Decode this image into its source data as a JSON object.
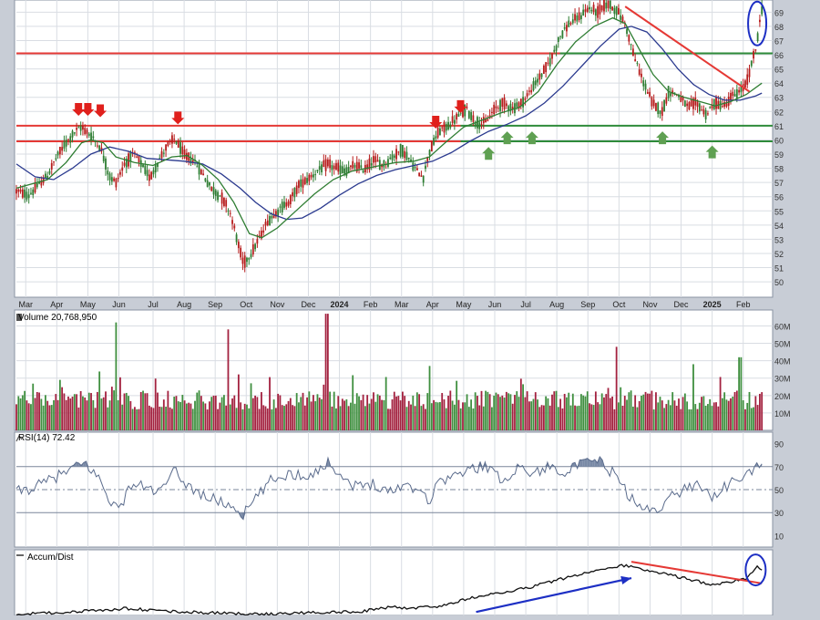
{
  "colors": {
    "background": "#c8cdd6",
    "panel": "#ffffff",
    "grid": "#d9dde3",
    "up_candle": "#2e7d32",
    "down_candle": "#b71c1c",
    "resistance": "#e53935",
    "support": "#2e8b3a",
    "sma_fast": "#2e7d32",
    "sma_slow": "#2b3a8f",
    "volume_up": "#3f8f3f",
    "volume_down": "#a3213f",
    "rsi_line": "#5a6b8c",
    "rsi_fill_over": "#7a8aa6",
    "accum_line": "#111111",
    "annotation_blue": "#1d2fc4",
    "annotation_red": "#e53935",
    "arrow_red": "#e0201c",
    "arrow_green": "#5fa052"
  },
  "chart_data": [
    {
      "type": "candlestick",
      "panel": "price",
      "y_ticks": [
        50,
        51,
        52,
        53,
        54,
        55,
        56,
        57,
        58,
        59,
        60,
        61,
        62,
        63,
        64,
        65,
        66,
        67,
        68,
        69
      ],
      "ylim": [
        49.3,
        69.6
      ],
      "x_ticks": [
        "Mar",
        "Apr",
        "May",
        "Jun",
        "Jul",
        "Aug",
        "Sep",
        "Oct",
        "Nov",
        "Dec",
        "2024",
        "Feb",
        "Mar",
        "Apr",
        "May",
        "Jun",
        "Jul",
        "Aug",
        "Sep",
        "Oct",
        "Nov",
        "Dec",
        "2025",
        "Feb"
      ],
      "bold_x_ticks": [
        "2024",
        "2025"
      ],
      "x_index_of_ticks": [
        0.3,
        1.3,
        2.3,
        3.3,
        4.4,
        5.4,
        6.4,
        7.4,
        8.4,
        9.4,
        10.4,
        11.4,
        12.4,
        13.4,
        14.4,
        15.4,
        16.4,
        17.4,
        18.4,
        19.4,
        20.4,
        21.4,
        22.4,
        23.4
      ],
      "x_span_months": 24.2,
      "close_path": [
        [
          0.0,
          56.4
        ],
        [
          0.4,
          56.1
        ],
        [
          0.7,
          56.8
        ],
        [
          1.0,
          57.5
        ],
        [
          1.3,
          58.8
        ],
        [
          1.6,
          59.8
        ],
        [
          1.9,
          60.6
        ],
        [
          2.1,
          60.9
        ],
        [
          2.4,
          60.3
        ],
        [
          2.7,
          59.5
        ],
        [
          3.0,
          57.4
        ],
        [
          3.2,
          57.0
        ],
        [
          3.5,
          58.4
        ],
        [
          3.8,
          59.0
        ],
        [
          4.1,
          58.0
        ],
        [
          4.3,
          57.3
        ],
        [
          4.5,
          58.2
        ],
        [
          4.8,
          59.4
        ],
        [
          5.1,
          60.1
        ],
        [
          5.4,
          58.9
        ],
        [
          5.7,
          58.6
        ],
        [
          6.0,
          57.6
        ],
        [
          6.3,
          56.5
        ],
        [
          6.6,
          56.0
        ],
        [
          6.9,
          54.8
        ],
        [
          7.1,
          53.0
        ],
        [
          7.3,
          51.3
        ],
        [
          7.5,
          51.8
        ],
        [
          7.8,
          53.0
        ],
        [
          8.1,
          54.3
        ],
        [
          8.4,
          55.0
        ],
        [
          8.8,
          55.7
        ],
        [
          9.1,
          56.8
        ],
        [
          9.4,
          57.3
        ],
        [
          9.7,
          57.8
        ],
        [
          10.0,
          58.3
        ],
        [
          10.3,
          58.0
        ],
        [
          10.6,
          57.8
        ],
        [
          10.9,
          58.2
        ],
        [
          11.2,
          57.9
        ],
        [
          11.5,
          58.6
        ],
        [
          11.8,
          58.2
        ],
        [
          12.1,
          58.8
        ],
        [
          12.4,
          59.3
        ],
        [
          12.6,
          58.8
        ],
        [
          12.9,
          57.8
        ],
        [
          13.1,
          57.4
        ],
        [
          13.3,
          59.2
        ],
        [
          13.6,
          60.6
        ],
        [
          13.9,
          61.0
        ],
        [
          14.2,
          61.6
        ],
        [
          14.5,
          62.2
        ],
        [
          14.8,
          61.2
        ],
        [
          15.1,
          61.2
        ],
        [
          15.4,
          62.2
        ],
        [
          15.7,
          62.6
        ],
        [
          16.0,
          62.2
        ],
        [
          16.3,
          62.7
        ],
        [
          16.6,
          63.6
        ],
        [
          16.9,
          64.6
        ],
        [
          17.2,
          65.6
        ],
        [
          17.5,
          67.3
        ],
        [
          17.8,
          68.2
        ],
        [
          18.1,
          68.6
        ],
        [
          18.4,
          69.3
        ],
        [
          18.7,
          69.0
        ],
        [
          19.0,
          69.6
        ],
        [
          19.3,
          69.2
        ],
        [
          19.6,
          68.2
        ],
        [
          19.9,
          65.8
        ],
        [
          20.2,
          64.0
        ],
        [
          20.5,
          62.5
        ],
        [
          20.8,
          62.0
        ],
        [
          21.0,
          63.4
        ],
        [
          21.3,
          63.2
        ],
        [
          21.6,
          62.3
        ],
        [
          21.9,
          62.6
        ],
        [
          22.2,
          61.8
        ],
        [
          22.5,
          62.6
        ],
        [
          22.8,
          62.4
        ],
        [
          23.0,
          63.0
        ],
        [
          23.3,
          63.4
        ],
        [
          23.5,
          64.0
        ],
        [
          23.8,
          66.4
        ],
        [
          24.0,
          69.2
        ]
      ],
      "sma_fast_path": [
        [
          0.0,
          56.6
        ],
        [
          1.0,
          57.2
        ],
        [
          1.6,
          58.4
        ],
        [
          2.1,
          59.8
        ],
        [
          2.4,
          60.0
        ],
        [
          2.8,
          59.8
        ],
        [
          3.2,
          58.8
        ],
        [
          3.8,
          58.4
        ],
        [
          4.4,
          58.2
        ],
        [
          5.0,
          58.8
        ],
        [
          5.5,
          58.9
        ],
        [
          6.0,
          58.2
        ],
        [
          6.5,
          57.2
        ],
        [
          7.0,
          55.6
        ],
        [
          7.5,
          53.4
        ],
        [
          7.9,
          53.1
        ],
        [
          8.4,
          53.8
        ],
        [
          9.0,
          55.0
        ],
        [
          9.6,
          56.2
        ],
        [
          10.2,
          57.2
        ],
        [
          10.8,
          57.8
        ],
        [
          11.5,
          58.1
        ],
        [
          12.2,
          58.4
        ],
        [
          12.8,
          58.5
        ],
        [
          13.3,
          58.8
        ],
        [
          13.8,
          59.8
        ],
        [
          14.4,
          60.9
        ],
        [
          15.0,
          61.4
        ],
        [
          15.6,
          61.9
        ],
        [
          16.2,
          62.3
        ],
        [
          16.8,
          63.4
        ],
        [
          17.4,
          65.3
        ],
        [
          18.0,
          66.9
        ],
        [
          18.6,
          68.0
        ],
        [
          19.2,
          68.6
        ],
        [
          19.6,
          68.2
        ],
        [
          20.0,
          66.6
        ],
        [
          20.5,
          64.6
        ],
        [
          21.0,
          63.4
        ],
        [
          21.5,
          63.0
        ],
        [
          22.0,
          62.7
        ],
        [
          22.5,
          62.4
        ],
        [
          23.0,
          62.7
        ],
        [
          23.5,
          63.2
        ],
        [
          24.0,
          64.0
        ]
      ],
      "sma_slow_path": [
        [
          0.0,
          58.3
        ],
        [
          0.6,
          57.4
        ],
        [
          1.2,
          57.2
        ],
        [
          1.8,
          58.0
        ],
        [
          2.4,
          59.0
        ],
        [
          3.0,
          59.5
        ],
        [
          3.6,
          59.2
        ],
        [
          4.2,
          58.7
        ],
        [
          4.8,
          58.6
        ],
        [
          5.4,
          58.5
        ],
        [
          6.0,
          58.3
        ],
        [
          6.6,
          57.6
        ],
        [
          7.2,
          56.6
        ],
        [
          7.7,
          55.6
        ],
        [
          8.2,
          54.8
        ],
        [
          8.7,
          54.4
        ],
        [
          9.2,
          54.5
        ],
        [
          9.8,
          55.2
        ],
        [
          10.4,
          56.1
        ],
        [
          11.0,
          56.9
        ],
        [
          11.6,
          57.5
        ],
        [
          12.2,
          57.9
        ],
        [
          12.8,
          58.2
        ],
        [
          13.4,
          58.5
        ],
        [
          14.0,
          59.1
        ],
        [
          14.6,
          59.9
        ],
        [
          15.2,
          60.6
        ],
        [
          15.8,
          61.1
        ],
        [
          16.4,
          61.7
        ],
        [
          17.0,
          62.6
        ],
        [
          17.6,
          63.8
        ],
        [
          18.2,
          65.2
        ],
        [
          18.8,
          66.6
        ],
        [
          19.4,
          67.8
        ],
        [
          19.8,
          68.0
        ],
        [
          20.3,
          67.6
        ],
        [
          20.8,
          66.4
        ],
        [
          21.3,
          65.0
        ],
        [
          21.8,
          63.9
        ],
        [
          22.3,
          63.2
        ],
        [
          22.8,
          62.8
        ],
        [
          23.3,
          62.8
        ],
        [
          23.8,
          63.1
        ],
        [
          24.0,
          63.3
        ]
      ],
      "resistance_lines": [
        66.1,
        61.0,
        59.9
      ],
      "support_lines": [
        66.1,
        61.0,
        59.9
      ],
      "support_line_from_month": 14.3,
      "trendline": [
        [
          19.6,
          69.4
        ],
        [
          23.6,
          63.4
        ]
      ],
      "red_arrows": [
        [
          2.0,
          61.7
        ],
        [
          2.3,
          61.7
        ],
        [
          2.7,
          61.6
        ],
        [
          5.2,
          61.1
        ],
        [
          13.5,
          60.8
        ],
        [
          14.3,
          61.9
        ]
      ],
      "green_arrows": [
        [
          15.2,
          59.5
        ],
        [
          15.8,
          60.6
        ],
        [
          16.6,
          60.6
        ],
        [
          20.8,
          60.6
        ],
        [
          22.4,
          59.6
        ]
      ],
      "circle_annotation": [
        23.85,
        68.2
      ]
    },
    {
      "type": "bar",
      "panel": "volume",
      "label": "Volume 20,768,950",
      "y_ticks": [
        "10M",
        "20M",
        "30M",
        "40M",
        "50M",
        "60M"
      ],
      "y_tick_values": [
        10,
        20,
        30,
        40,
        50,
        60
      ],
      "ylim": [
        0,
        66
      ],
      "spikes": [
        [
          3.2,
          62
        ],
        [
          6.8,
          58
        ],
        [
          10.0,
          67
        ],
        [
          13.3,
          37
        ],
        [
          19.3,
          48
        ],
        [
          21.8,
          38
        ],
        [
          23.3,
          42
        ]
      ],
      "series_seed": 7
    },
    {
      "type": "line",
      "panel": "rsi",
      "label": "RSI(14) 72.42",
      "y_ticks": [
        10,
        30,
        50,
        70,
        90
      ],
      "ylim": [
        0,
        100
      ],
      "reference_lines": [
        30,
        50,
        70
      ],
      "path": [
        [
          0.0,
          48
        ],
        [
          0.6,
          52
        ],
        [
          1.2,
          60
        ],
        [
          1.8,
          68
        ],
        [
          2.2,
          73
        ],
        [
          2.6,
          62
        ],
        [
          3.0,
          42
        ],
        [
          3.3,
          32
        ],
        [
          3.7,
          55
        ],
        [
          4.2,
          52
        ],
        [
          4.6,
          47
        ],
        [
          5.1,
          66
        ],
        [
          5.5,
          54
        ],
        [
          6.0,
          45
        ],
        [
          6.5,
          40
        ],
        [
          7.0,
          35
        ],
        [
          7.3,
          28
        ],
        [
          7.7,
          42
        ],
        [
          8.2,
          58
        ],
        [
          8.8,
          64
        ],
        [
          9.3,
          62
        ],
        [
          9.8,
          68
        ],
        [
          10.1,
          74
        ],
        [
          10.6,
          58
        ],
        [
          11.0,
          52
        ],
        [
          11.5,
          56
        ],
        [
          12.0,
          48
        ],
        [
          12.5,
          55
        ],
        [
          13.0,
          50
        ],
        [
          13.3,
          40
        ],
        [
          13.6,
          58
        ],
        [
          14.1,
          62
        ],
        [
          14.7,
          68
        ],
        [
          15.1,
          72
        ],
        [
          15.6,
          58
        ],
        [
          16.2,
          70
        ],
        [
          16.6,
          64
        ],
        [
          17.2,
          70
        ],
        [
          17.7,
          66
        ],
        [
          18.2,
          72
        ],
        [
          18.7,
          76
        ],
        [
          19.3,
          62
        ],
        [
          19.7,
          46
        ],
        [
          20.0,
          35
        ],
        [
          20.3,
          32
        ],
        [
          20.7,
          35
        ],
        [
          21.1,
          44
        ],
        [
          21.6,
          52
        ],
        [
          22.0,
          55
        ],
        [
          22.4,
          44
        ],
        [
          22.8,
          52
        ],
        [
          23.2,
          58
        ],
        [
          23.5,
          62
        ],
        [
          23.8,
          70
        ],
        [
          24.0,
          72.42
        ]
      ]
    },
    {
      "type": "line",
      "panel": "accum_dist",
      "label": "Accum/Dist",
      "path": [
        [
          0.0,
          0.02
        ],
        [
          1.5,
          0.05
        ],
        [
          3.0,
          0.1
        ],
        [
          3.5,
          0.12
        ],
        [
          5.0,
          0.07
        ],
        [
          6.5,
          0.04
        ],
        [
          8.0,
          0.02
        ],
        [
          9.5,
          0.05
        ],
        [
          11.0,
          0.06
        ],
        [
          12.0,
          0.14
        ],
        [
          12.8,
          0.13
        ],
        [
          13.6,
          0.16
        ],
        [
          14.5,
          0.28
        ],
        [
          15.5,
          0.38
        ],
        [
          16.5,
          0.48
        ],
        [
          17.5,
          0.62
        ],
        [
          18.3,
          0.72
        ],
        [
          19.0,
          0.82
        ],
        [
          19.6,
          0.86
        ],
        [
          20.3,
          0.78
        ],
        [
          21.0,
          0.7
        ],
        [
          21.8,
          0.6
        ],
        [
          22.5,
          0.52
        ],
        [
          23.0,
          0.58
        ],
        [
          23.5,
          0.62
        ],
        [
          23.85,
          0.83
        ],
        [
          24.0,
          0.76
        ]
      ],
      "blue_arrow": [
        [
          14.8,
          0.06
        ],
        [
          19.8,
          0.64
        ]
      ],
      "red_trendline": [
        [
          19.8,
          0.92
        ],
        [
          24.0,
          0.55
        ]
      ],
      "circle_annotation": [
        23.8,
        0.78
      ]
    }
  ]
}
